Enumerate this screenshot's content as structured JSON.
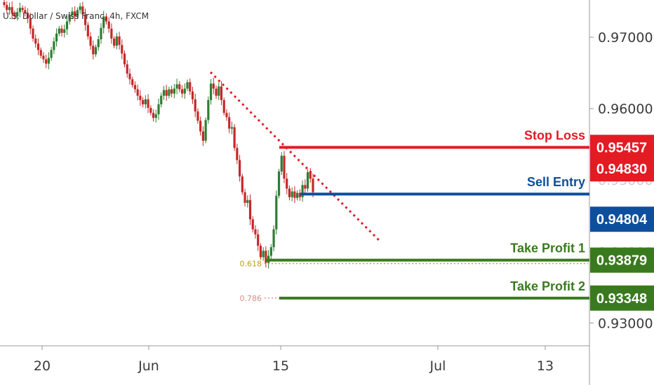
{
  "title": "U.S. Dollar / Swiss Franc, 4h, FXCM",
  "colors": {
    "up": "#2e7d32",
    "down": "#c62828",
    "stop": "#e31b23",
    "entry": "#0d4f9c",
    "profit": "#3a7a1f",
    "trend": "#e31b23",
    "fib618": "#b5a01a",
    "fib786": "#e08a8a",
    "axis": "#9a9a9a"
  },
  "chart_data": {
    "type": "candlestick",
    "title": "U.S. Dollar / Swiss Franc, 4h, FXCM",
    "x_tick_labels": [
      "20",
      "Jun",
      "15",
      "Jul",
      "13"
    ],
    "y_tick_labels": [
      "0.97000",
      "0.96000",
      "0.95000",
      "0.94000",
      "0.93000"
    ],
    "y_ticks": [
      0.97,
      0.96,
      0.95,
      0.94,
      0.93
    ],
    "ylim": [
      0.9268,
      0.9752
    ],
    "grid": false,
    "levels": [
      {
        "name": "Stop Loss",
        "price": 0.95457,
        "label": "0.95457",
        "color": "#e31b23"
      },
      {
        "name": "Sell Entry",
        "price": 0.94804,
        "label": "0.94804",
        "color": "#0d4f9c"
      },
      {
        "name": "Take Profit 1",
        "price": 0.93879,
        "label": "0.93879",
        "color": "#3a7a1f"
      },
      {
        "name": "Take Profit 2",
        "price": 0.93348,
        "label": "0.93348",
        "color": "#3a7a1f"
      }
    ],
    "current_price": {
      "label": "0.94830",
      "price": 0.9483,
      "color": "#e31b23"
    },
    "fib_levels": [
      {
        "label": "0.618",
        "price": 0.9383
      },
      {
        "label": "0.786",
        "price": 0.93348
      }
    ],
    "close_path": [
      0.9745,
      0.9738,
      0.9742,
      0.9733,
      0.9729,
      0.9735,
      0.9741,
      0.9738,
      0.9734,
      0.9726,
      0.9712,
      0.9698,
      0.9691,
      0.9682,
      0.9674,
      0.9669,
      0.9663,
      0.9671,
      0.9682,
      0.9694,
      0.9705,
      0.9712,
      0.9706,
      0.9711,
      0.9722,
      0.9731,
      0.9736,
      0.9729,
      0.9738,
      0.9743,
      0.9732,
      0.9717,
      0.9701,
      0.9688,
      0.9676,
      0.9686,
      0.9697,
      0.9713,
      0.9729,
      0.9722,
      0.9712,
      0.9698,
      0.9688,
      0.9701,
      0.9689,
      0.9677,
      0.9662,
      0.9649,
      0.9641,
      0.9633,
      0.9627,
      0.9618,
      0.9612,
      0.9606,
      0.9613,
      0.9601,
      0.9594,
      0.9587,
      0.9592,
      0.9606,
      0.9618,
      0.9626,
      0.9618,
      0.9627,
      0.9621,
      0.9628,
      0.9634,
      0.9627,
      0.9621,
      0.9628,
      0.9637,
      0.9624,
      0.9613,
      0.9596,
      0.9583,
      0.9568,
      0.9555,
      0.9584,
      0.9612,
      0.9635,
      0.9628,
      0.9618,
      0.9631,
      0.9612,
      0.9594,
      0.9588,
      0.9572,
      0.9574,
      0.9545,
      0.9528,
      0.9505,
      0.9483,
      0.9468,
      0.9472,
      0.9445,
      0.9431,
      0.9424,
      0.9408,
      0.9392,
      0.9401,
      0.9384,
      0.9394,
      0.9406,
      0.9431,
      0.9478,
      0.9512,
      0.9534,
      0.9502,
      0.9488,
      0.9476,
      0.9484,
      0.9475,
      0.9482,
      0.9476,
      0.9493,
      0.9488,
      0.9511,
      0.9502,
      0.9483
    ]
  }
}
